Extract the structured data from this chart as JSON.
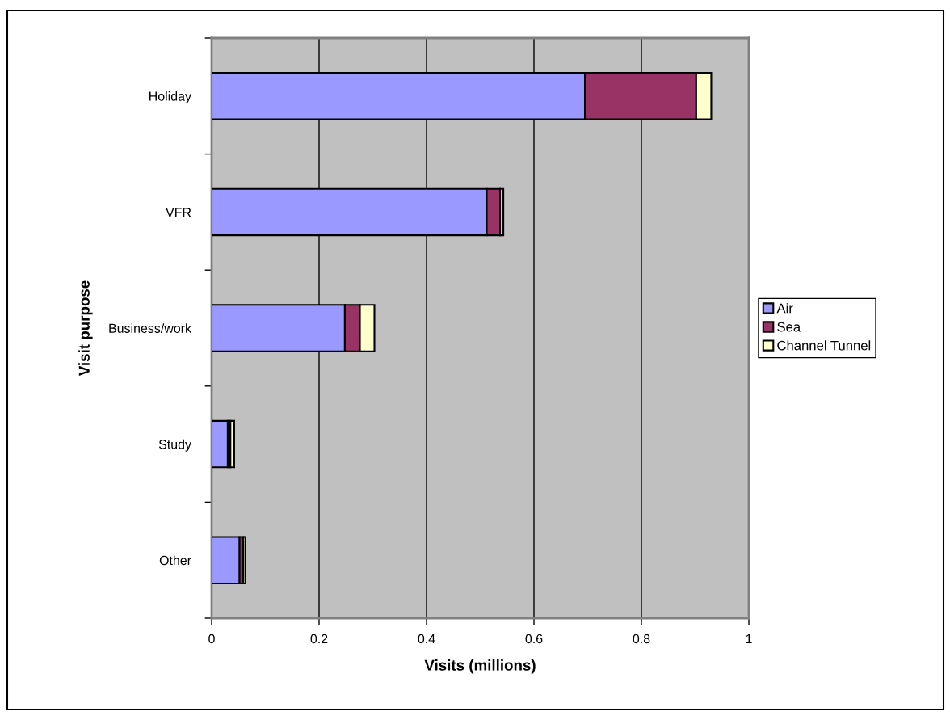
{
  "chart_data": {
    "type": "bar",
    "orientation": "horizontal",
    "stacked": true,
    "xlabel": "Visits (millions)",
    "ylabel": "Visit purpose",
    "categories": [
      "Holiday",
      "VFR",
      "Business/work",
      "Study",
      "Other"
    ],
    "series": [
      {
        "name": "Air",
        "color": "#9999ff",
        "values": [
          0.695,
          0.512,
          0.248,
          0.03,
          0.052
        ]
      },
      {
        "name": "Sea",
        "color": "#993366",
        "values": [
          0.207,
          0.025,
          0.028,
          0.005,
          0.007
        ]
      },
      {
        "name": "Channel Tunnel",
        "color": "#ffffcc",
        "values": [
          0.028,
          0.006,
          0.027,
          0.007,
          0.004
        ]
      }
    ],
    "xlim": [
      0,
      1
    ],
    "xticks": [
      0,
      0.2,
      0.4,
      0.6,
      0.8,
      1
    ],
    "grid": "x",
    "legend": "right"
  }
}
